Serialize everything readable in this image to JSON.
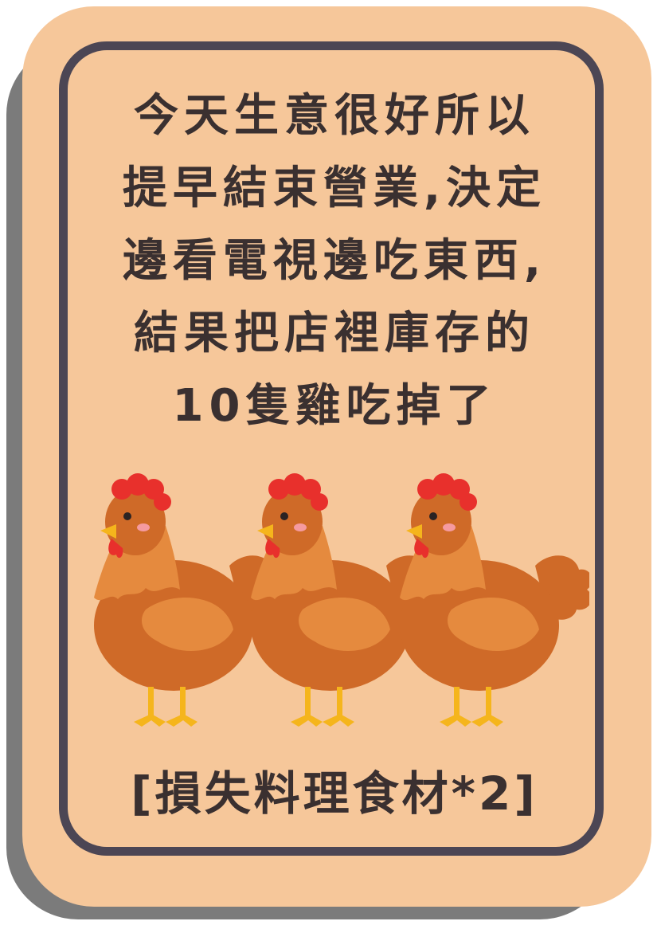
{
  "card": {
    "story_lines": [
      "今天生意很好所以",
      "提早結束營業,決定",
      "邊看電視邊吃東西,",
      "結果把店裡庫存的",
      "10隻雞吃掉了"
    ],
    "penalty": "[損失料理食材*2]"
  },
  "illustration": {
    "icon": "chicken-icon",
    "count": 3
  },
  "colors": {
    "card_background": "#f6c79a",
    "frame_border": "#4c4654",
    "shadow": "#7b7b7b",
    "text": "#3a3030",
    "chicken_body": "#cf6a28",
    "chicken_wing": "#e58a3e",
    "comb": "#e8302c",
    "beak_and_feet": "#f5b51c"
  }
}
